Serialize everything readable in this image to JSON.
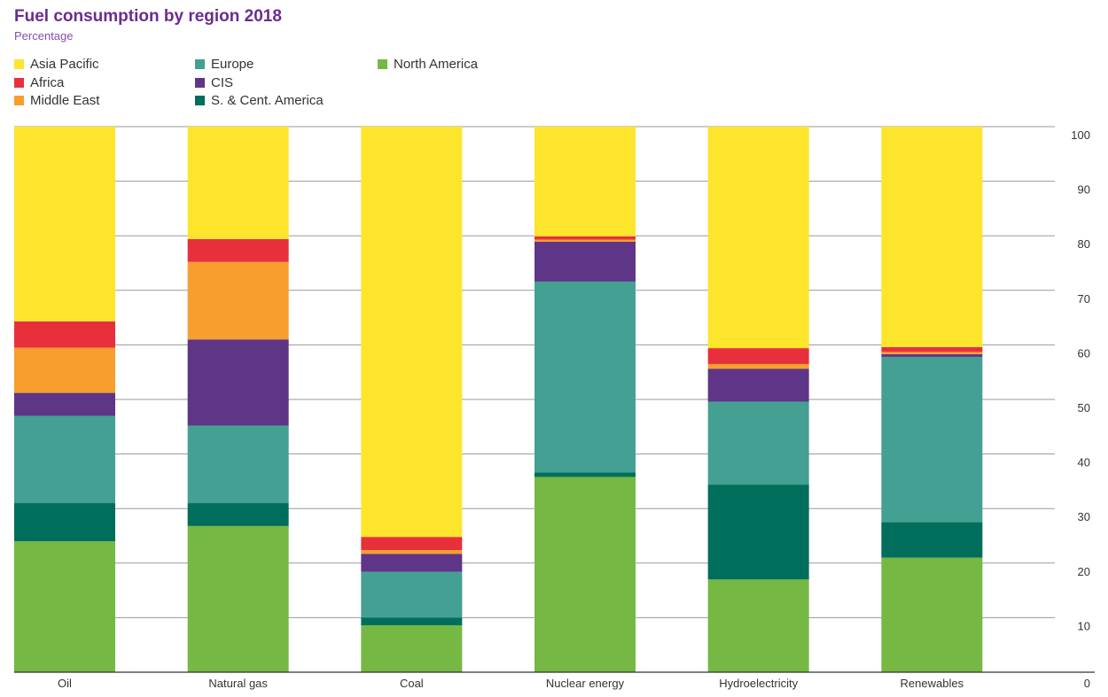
{
  "chart_data": {
    "type": "bar",
    "stacked": true,
    "title": "Fuel consumption by region 2018",
    "subtitle": "Percentage",
    "xlabel": "",
    "ylabel": "",
    "ylim": [
      0,
      100
    ],
    "y_ticks": [
      0,
      10,
      20,
      30,
      40,
      50,
      60,
      70,
      80,
      90,
      100
    ],
    "y_axis_side": "right",
    "grid": true,
    "legend_position": "top-left",
    "categories": [
      "Oil",
      "Natural gas",
      "Coal",
      "Nuclear energy",
      "Hydroelectricity",
      "Renewables"
    ],
    "series": [
      {
        "name": "North America",
        "color": "#76b844",
        "values": [
          24,
          26.8,
          8.6,
          35.8,
          17,
          21
        ]
      },
      {
        "name": "S. & Cent. America",
        "color": "#006e5a",
        "values": [
          7,
          4.2,
          1.4,
          0.8,
          17.4,
          6.5
        ]
      },
      {
        "name": "Europe",
        "color": "#43a093",
        "values": [
          16,
          14.2,
          8.4,
          35,
          15.2,
          30.3
        ]
      },
      {
        "name": "CIS",
        "color": "#5e3587",
        "values": [
          4.2,
          15.8,
          3.3,
          7.3,
          6,
          0.5
        ]
      },
      {
        "name": "Middle East",
        "color": "#f79e2f",
        "values": [
          8.3,
          14.2,
          0.7,
          0.4,
          0.9,
          0.4
        ]
      },
      {
        "name": "Africa",
        "color": "#e8303c",
        "values": [
          4.8,
          4.2,
          2.4,
          0.6,
          2.9,
          0.9
        ]
      },
      {
        "name": "Asia Pacific",
        "color": "#fde52c",
        "values": [
          35.7,
          20.6,
          75.2,
          20.1,
          40.6,
          40.4
        ]
      }
    ],
    "legend": [
      {
        "name": "Asia Pacific",
        "color": "#fde52c"
      },
      {
        "name": "Africa",
        "color": "#e8303c"
      },
      {
        "name": "Middle East",
        "color": "#f79e2f"
      },
      {
        "name": "Europe",
        "color": "#43a093"
      },
      {
        "name": "CIS",
        "color": "#5e3587"
      },
      {
        "name": "S. & Cent. America",
        "color": "#006e5a"
      },
      {
        "name": "North America",
        "color": "#76b844"
      }
    ]
  }
}
